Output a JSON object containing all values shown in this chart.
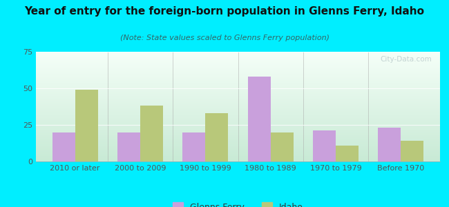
{
  "title": "Year of entry for the foreign-born population in Glenns Ferry, Idaho",
  "subtitle": "(Note: State values scaled to Glenns Ferry population)",
  "categories": [
    "2010 or later",
    "2000 to 2009",
    "1990 to 1999",
    "1980 to 1989",
    "1970 to 1979",
    "Before 1970"
  ],
  "glenns_ferry": [
    20,
    20,
    20,
    58,
    21,
    23
  ],
  "idaho": [
    49,
    38,
    33,
    20,
    11,
    14
  ],
  "glenns_ferry_color": "#c9a0dc",
  "idaho_color": "#b8c87a",
  "background_outer": "#00eeff",
  "background_inner": "#e8f5ee",
  "ylim": [
    0,
    75
  ],
  "yticks": [
    0,
    25,
    50,
    75
  ],
  "bar_width": 0.35,
  "title_fontsize": 11,
  "subtitle_fontsize": 8,
  "legend_fontsize": 9,
  "tick_fontsize": 8,
  "watermark": "City-Data.com"
}
